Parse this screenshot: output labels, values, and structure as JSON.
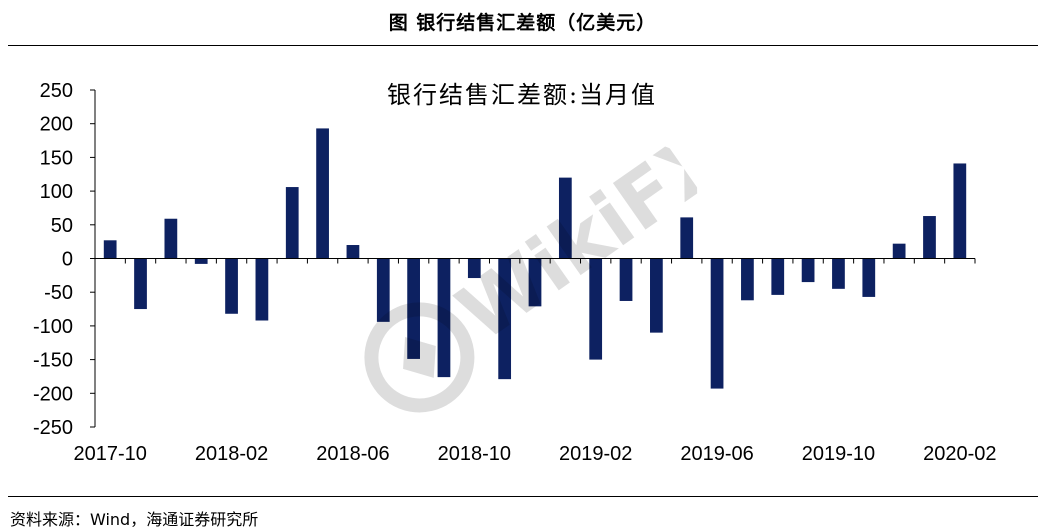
{
  "figure": {
    "title": "图  银行结售汇差额（亿美元）",
    "source": "资料来源：Wind，海通证券研究所",
    "watermark": "WikiFX"
  },
  "colors": {
    "bar": "#0d2161",
    "axis": "#000000"
  },
  "chart_data": {
    "type": "bar",
    "title": "银行结售汇差额:当月值",
    "xlabel": "",
    "ylabel": "",
    "ylim": [
      -250,
      250
    ],
    "yticks": [
      250,
      200,
      150,
      100,
      50,
      0,
      -50,
      -100,
      -150,
      -200,
      -250
    ],
    "grid": false,
    "legend": "none",
    "x_tick_labels": [
      "2017-10",
      "2018-02",
      "2018-06",
      "2018-10",
      "2019-02",
      "2019-06",
      "2019-10",
      "2020-02"
    ],
    "categories": [
      "2017-10",
      "2017-11",
      "2017-12",
      "2018-01",
      "2018-02",
      "2018-03",
      "2018-04",
      "2018-05",
      "2018-06",
      "2018-07",
      "2018-08",
      "2018-09",
      "2018-10",
      "2018-11",
      "2018-12",
      "2019-01",
      "2019-02",
      "2019-03",
      "2019-04",
      "2019-05",
      "2019-06",
      "2019-07",
      "2019-08",
      "2019-09",
      "2019-10",
      "2019-11",
      "2019-12",
      "2020-01",
      "2020-02"
    ],
    "values": [
      27,
      -75,
      59,
      -8,
      -82,
      -92,
      106,
      193,
      20,
      -94,
      -149,
      -176,
      -29,
      -179,
      -71,
      120,
      -150,
      -63,
      -110,
      61,
      -193,
      -62,
      -54,
      -35,
      -45,
      -57,
      22,
      63,
      141
    ]
  }
}
